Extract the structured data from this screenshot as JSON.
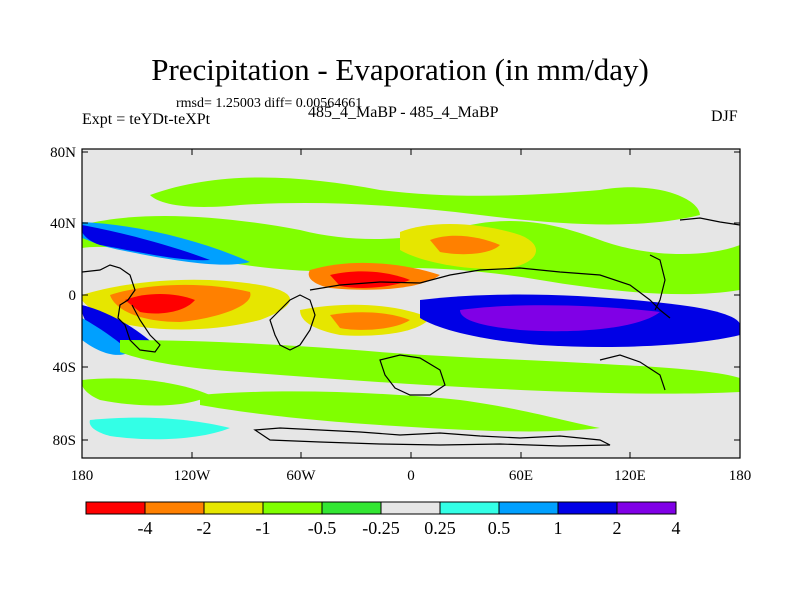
{
  "title": "Precipitation - Evaporation (in mm/day)",
  "stats_text": "rmsd= 1.25003 diff= 0.00564661",
  "expt_label": "Expt = teYDt-teXPt",
  "case_label": "485_4_MaBP - 485_4_MaBP",
  "season_label": "DJF",
  "lat_ticks": [
    "80N",
    "40N",
    "0",
    "40S",
    "80S"
  ],
  "lon_ticks": [
    "180",
    "120W",
    "60W",
    "0",
    "60E",
    "120E",
    "180"
  ],
  "colorbar": {
    "colors": [
      "#ff0000",
      "#ff8000",
      "#e6e600",
      "#80ff00",
      "#33e633",
      "#e6e6e6",
      "#33ffe6",
      "#00a0ff",
      "#0000e6",
      "#8000e6"
    ],
    "labels": [
      "-4",
      "-2",
      "-1",
      "-0.5",
      "-0.25",
      "0.25",
      "0.5",
      "1",
      "2",
      "4"
    ]
  }
}
